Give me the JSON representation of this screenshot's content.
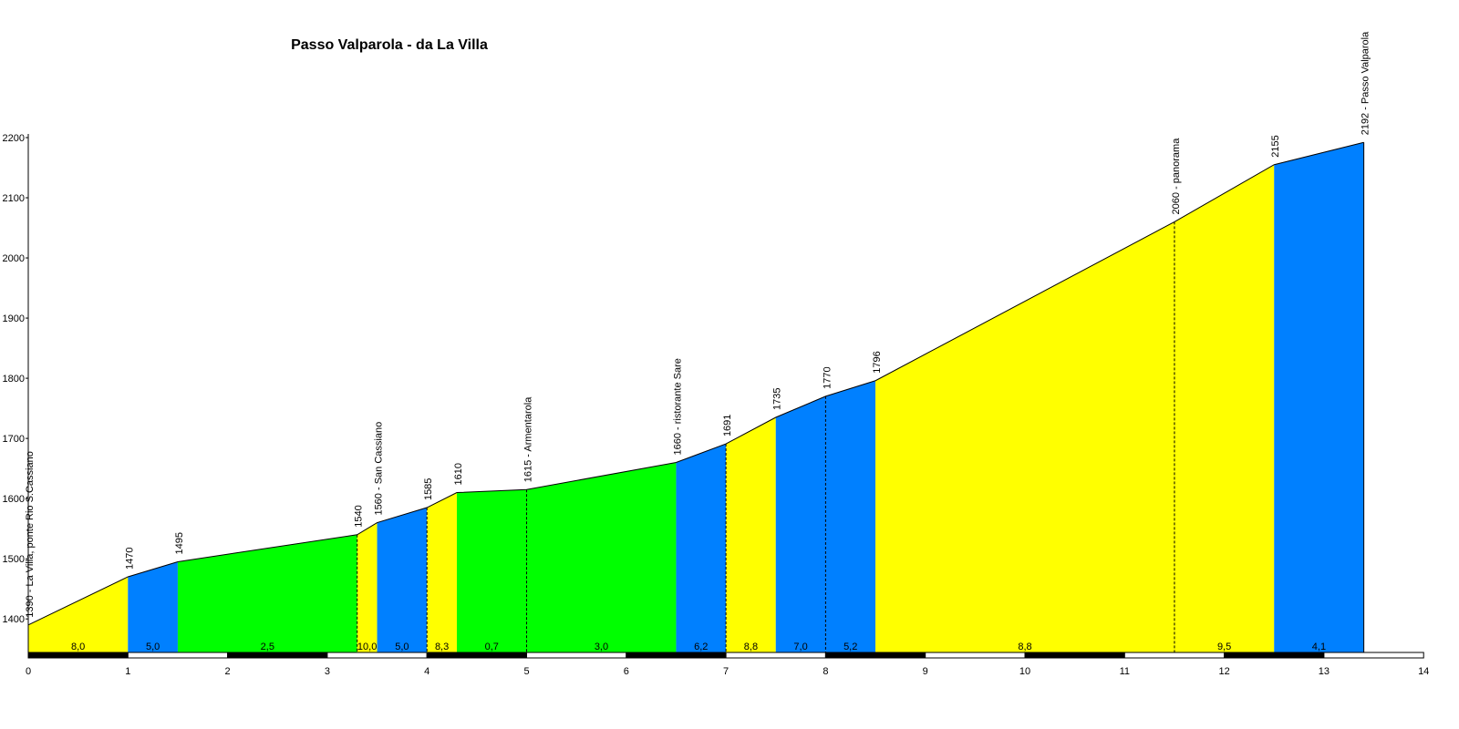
{
  "chart_data": {
    "type": "area",
    "title": "Passo Valparola - da La Villa",
    "xlabel": "",
    "ylabel": "",
    "xlim": [
      0,
      14
    ],
    "ylim": [
      1320,
      2200
    ],
    "yticks": [
      1400,
      1500,
      1600,
      1700,
      1800,
      1900,
      2000,
      2100,
      2200
    ],
    "xticks": [
      0,
      1,
      2,
      3,
      4,
      5,
      6,
      7,
      8,
      9,
      10,
      11,
      12,
      13,
      14
    ],
    "points": [
      {
        "x": 0,
        "y": 1390,
        "label": "1390 - La Villa, ponte Rio S.Cassiano"
      },
      {
        "x": 1,
        "y": 1470,
        "label": "1470"
      },
      {
        "x": 1.5,
        "y": 1495,
        "label": "1495"
      },
      {
        "x": 3.3,
        "y": 1540,
        "label": "1540"
      },
      {
        "x": 3.5,
        "y": 1560,
        "label": "1560 - San Cassiano"
      },
      {
        "x": 4,
        "y": 1585,
        "label": "1585"
      },
      {
        "x": 4.3,
        "y": 1610,
        "label": "1610"
      },
      {
        "x": 5,
        "y": 1615,
        "label": "1615 - Armentarola"
      },
      {
        "x": 6.5,
        "y": 1660,
        "label": "1660 - ristorante Sare"
      },
      {
        "x": 7,
        "y": 1691,
        "label": "1691"
      },
      {
        "x": 7.5,
        "y": 1735,
        "label": "1735"
      },
      {
        "x": 8,
        "y": 1770,
        "label": "1770"
      },
      {
        "x": 8.5,
        "y": 1796,
        "label": "1796"
      },
      {
        "x": 11.5,
        "y": 2060,
        "label": "2060 - panorama"
      },
      {
        "x": 12.5,
        "y": 2155,
        "label": "2155"
      },
      {
        "x": 13.4,
        "y": 2192,
        "label": "2192 - Passo Valparola"
      }
    ],
    "segments": [
      {
        "from": 0,
        "to": 1,
        "gradient": "8,0",
        "color": "#ffff00"
      },
      {
        "from": 1,
        "to": 1.5,
        "gradient": "5,0",
        "color": "#0080ff"
      },
      {
        "from": 1.5,
        "to": 3.3,
        "gradient": "2,5",
        "color": "#00ff00"
      },
      {
        "from": 3.3,
        "to": 3.5,
        "gradient": "10,0",
        "color": "#ffff00"
      },
      {
        "from": 3.5,
        "to": 4,
        "gradient": "5,0",
        "color": "#0080ff"
      },
      {
        "from": 4,
        "to": 4.3,
        "gradient": "8,3",
        "color": "#ffff00"
      },
      {
        "from": 4.3,
        "to": 5,
        "gradient": "0,7",
        "color": "#00ff00"
      },
      {
        "from": 5,
        "to": 6.5,
        "gradient": "3,0",
        "color": "#00ff00"
      },
      {
        "from": 6.5,
        "to": 7,
        "gradient": "6,2",
        "color": "#0080ff"
      },
      {
        "from": 7,
        "to": 7.5,
        "gradient": "8,8",
        "color": "#ffff00"
      },
      {
        "from": 7.5,
        "to": 8,
        "gradient": "7,0",
        "color": "#0080ff"
      },
      {
        "from": 8,
        "to": 8.5,
        "gradient": "5,2",
        "color": "#0080ff"
      },
      {
        "from": 8.5,
        "to": 11.5,
        "gradient": "8,8",
        "color": "#ffff00"
      },
      {
        "from": 11.5,
        "to": 12.5,
        "gradient": "9,5",
        "color": "#ffff00"
      },
      {
        "from": 12.5,
        "to": 13.4,
        "gradient": "4,1",
        "color": "#0080ff"
      }
    ],
    "dashed_dividers": [
      3.3,
      4,
      5,
      7,
      8,
      11.5
    ],
    "grid": false,
    "legend": "none"
  }
}
